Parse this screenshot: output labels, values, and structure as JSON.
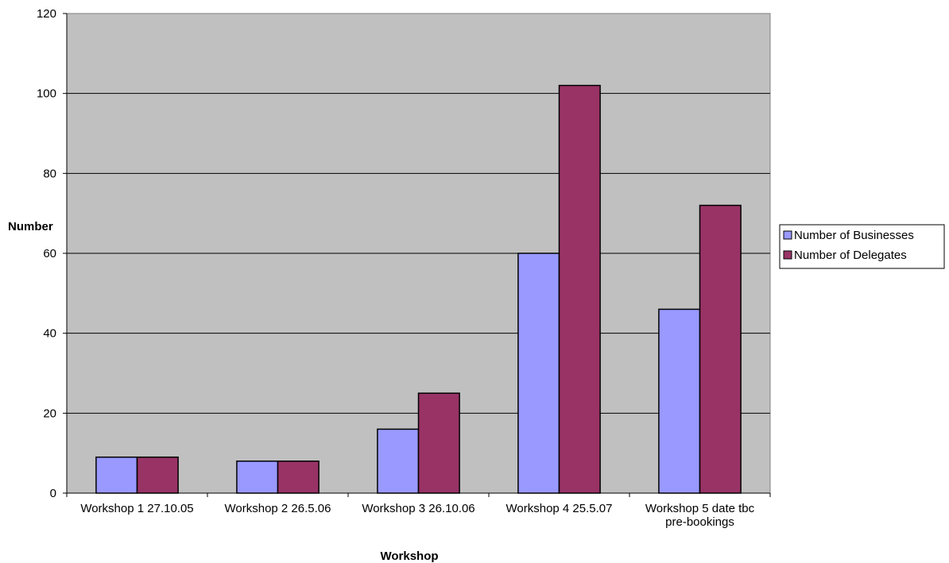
{
  "chart_data": {
    "type": "bar",
    "title": "",
    "xlabel": "Workshop",
    "ylabel": "Number",
    "ylim": [
      0,
      120
    ],
    "yticks": [
      0,
      20,
      40,
      60,
      80,
      100,
      120
    ],
    "grid": true,
    "legend_position": "right",
    "plot_background": "#c0c0c0",
    "categories": [
      [
        "Workshop 1 27.10.05"
      ],
      [
        "Workshop 2 26.5.06"
      ],
      [
        "Workshop 3 26.10.06"
      ],
      [
        "Workshop 4 25.5.07"
      ],
      [
        "Workshop 5 date tbc",
        "pre-bookings"
      ]
    ],
    "series": [
      {
        "name": "Number of Businesses",
        "color": "#9999ff",
        "values": [
          9,
          8,
          16,
          60,
          46
        ]
      },
      {
        "name": "Number of Delegates",
        "color": "#993366",
        "values": [
          9,
          8,
          25,
          102,
          72
        ]
      }
    ]
  }
}
